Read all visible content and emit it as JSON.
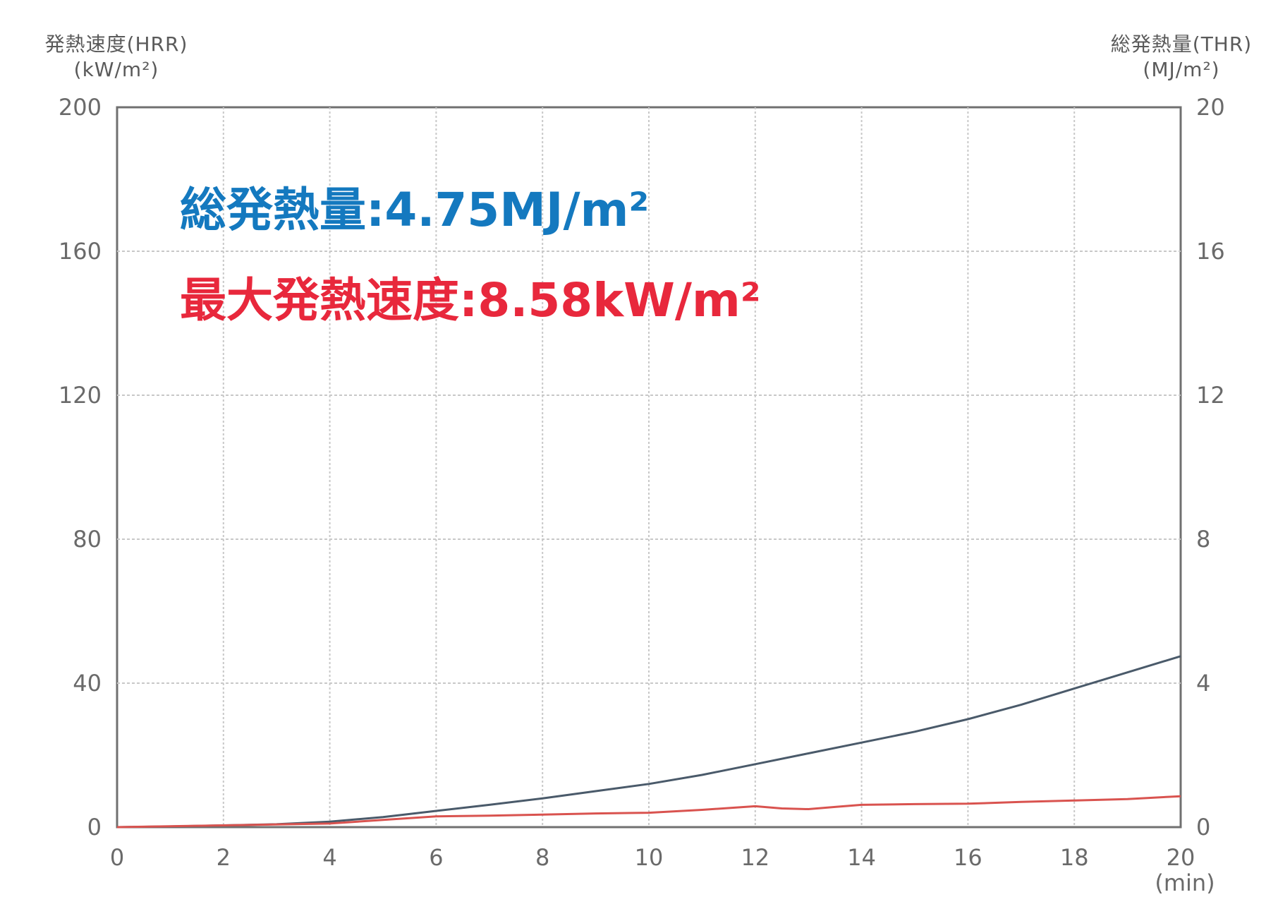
{
  "left_axis": {
    "title": "発熱速度(HRR)",
    "unit": "(kW/m²)"
  },
  "right_axis": {
    "title": "総発熱量(THR)",
    "unit": "(MJ/m²)"
  },
  "annotations": {
    "thr": "総発熱量:4.75MJ/m²",
    "hrr": "最大発熱速度:8.58kW/m²"
  },
  "colors": {
    "thr": "#1479bf",
    "hrr": "#e8283c",
    "thr_line": "#4a5a6a",
    "hrr_line": "#d9534f",
    "grid": "#c8c8c8"
  },
  "chart_data": {
    "type": "line",
    "xlabel": "(min)",
    "x_ticks": [
      0,
      2,
      4,
      6,
      8,
      10,
      12,
      14,
      16,
      18,
      20
    ],
    "xlim": [
      0,
      20
    ],
    "y_left": {
      "ticks": [
        0,
        40,
        80,
        120,
        160,
        200
      ],
      "lim": [
        0,
        200
      ]
    },
    "y_right": {
      "ticks": [
        0,
        4,
        8,
        12,
        16,
        20
      ],
      "lim": [
        0,
        20
      ]
    },
    "grid": true,
    "series": [
      {
        "axis": "right",
        "color": "#4a5a6a",
        "x": [
          0,
          1,
          2,
          3,
          4,
          5,
          6,
          7,
          8,
          9,
          10,
          11,
          12,
          13,
          14,
          15,
          16,
          17,
          18,
          19,
          20
        ],
        "y": [
          0,
          0.02,
          0.05,
          0.08,
          0.15,
          0.28,
          0.45,
          0.62,
          0.8,
          1.0,
          1.2,
          1.45,
          1.75,
          2.05,
          2.35,
          2.65,
          3.0,
          3.4,
          3.85,
          4.3,
          4.75
        ]
      },
      {
        "axis": "left",
        "color": "#d9534f",
        "x": [
          0,
          2,
          4,
          5,
          6,
          7,
          8,
          9,
          10,
          11,
          12,
          12.5,
          13,
          13.5,
          14,
          15,
          16,
          17,
          18,
          19,
          20
        ],
        "y": [
          0,
          0.5,
          1.0,
          2.0,
          3.0,
          3.2,
          3.5,
          3.8,
          4.0,
          4.8,
          5.8,
          5.2,
          5.0,
          5.6,
          6.2,
          6.4,
          6.5,
          7.0,
          7.4,
          7.8,
          8.58
        ]
      }
    ]
  }
}
